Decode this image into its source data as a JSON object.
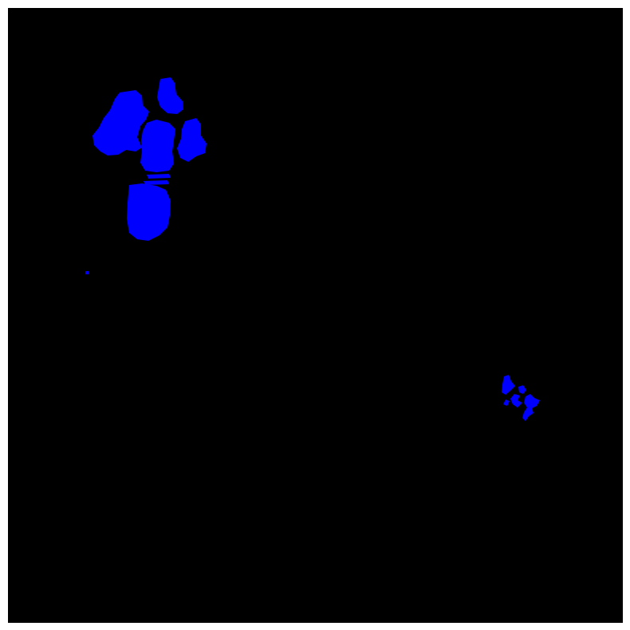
{
  "image": {
    "background_color": "#000000",
    "frame_color": "#ffffff",
    "region_color": "#0000ff",
    "region_count": 3,
    "regions": [
      {
        "name": "upper-left-cluster"
      },
      {
        "name": "left-speck"
      },
      {
        "name": "lower-right-cluster"
      }
    ]
  }
}
